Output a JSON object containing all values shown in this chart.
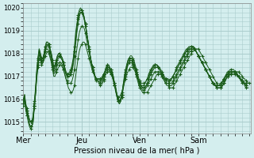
{
  "bg_color": "#d4eeee",
  "plot_bg_color": "#d4eeee",
  "grid_color": "#aacccc",
  "line_color": "#1a5c1a",
  "ylim": [
    1014.5,
    1020.2
  ],
  "yticks": [
    1015,
    1016,
    1017,
    1018,
    1019,
    1020
  ],
  "xlabel": "Pression niveau de la mer( hPa )",
  "day_labels": [
    "Mer",
    "Jeu",
    "Ven",
    "Sam"
  ],
  "day_positions": [
    0,
    48,
    96,
    144
  ],
  "series": [
    [
      1015.8,
      1016.1,
      1015.6,
      1015.5,
      1015.3,
      1015.1,
      1015.0,
      1015.0,
      1015.2,
      1015.8,
      1016.3,
      1017.1,
      1017.6,
      1018.0,
      1017.8,
      1017.6,
      1017.6,
      1017.7,
      1017.9,
      1018.0,
      1018.1,
      1018.0,
      1017.8,
      1017.6,
      1017.3,
      1017.0,
      1017.0,
      1017.2,
      1017.3,
      1017.4,
      1017.5,
      1017.5,
      1017.4,
      1017.3,
      1017.1,
      1016.9,
      1016.7,
      1016.5,
      1016.4,
      1016.3,
      1016.3,
      1016.4,
      1016.6,
      1017.0,
      1017.4,
      1017.8,
      1018.1,
      1018.3,
      1018.4,
      1018.5,
      1018.5,
      1018.4,
      1018.2,
      1018.0,
      1017.8,
      1017.6,
      1017.4,
      1017.2,
      1017.1,
      1017.0,
      1016.9,
      1016.8,
      1016.7,
      1016.6,
      1016.6,
      1016.7,
      1016.8,
      1017.0,
      1017.1,
      1017.2,
      1017.2,
      1017.2,
      1017.1,
      1017.0,
      1016.8,
      1016.6,
      1016.4,
      1016.2,
      1016.1,
      1016.1,
      1016.2,
      1016.3,
      1016.5,
      1016.7,
      1016.9,
      1017.1,
      1017.2,
      1017.3,
      1017.4,
      1017.4,
      1017.4,
      1017.3,
      1017.2,
      1017.0,
      1016.8,
      1016.6,
      1016.5,
      1016.4,
      1016.3,
      1016.3,
      1016.3,
      1016.3,
      1016.3,
      1016.4,
      1016.5,
      1016.6,
      1016.7,
      1016.8,
      1016.9,
      1017.0,
      1017.1,
      1017.1,
      1017.1,
      1017.1,
      1017.0,
      1016.9,
      1016.8,
      1016.7,
      1016.6,
      1016.6,
      1016.5,
      1016.5,
      1016.5,
      1016.5,
      1016.6,
      1016.7,
      1016.8,
      1016.9,
      1017.0,
      1017.1,
      1017.2,
      1017.3,
      1017.4,
      1017.5,
      1017.6,
      1017.7,
      1017.8,
      1017.9,
      1018.0,
      1018.1,
      1018.1,
      1018.2,
      1018.2,
      1018.2,
      1018.2,
      1018.1,
      1018.0,
      1017.9,
      1017.8,
      1017.7,
      1017.6,
      1017.5,
      1017.4,
      1017.3,
      1017.2,
      1017.1,
      1017.0,
      1016.9,
      1016.8,
      1016.7,
      1016.6,
      1016.6,
      1016.6,
      1016.6,
      1016.6,
      1016.7,
      1016.8,
      1016.9,
      1017.0,
      1017.0,
      1017.1,
      1017.1,
      1017.2,
      1017.2,
      1017.2,
      1017.2,
      1017.2,
      1017.2,
      1017.1,
      1017.1,
      1017.0,
      1016.9,
      1016.9,
      1016.8,
      1016.8,
      1016.7,
      1016.7,
      1016.7
    ],
    [
      1015.9,
      1016.2,
      1015.6,
      1015.4,
      1015.1,
      1014.9,
      1014.8,
      1014.8,
      1015.0,
      1015.6,
      1016.2,
      1017.0,
      1017.5,
      1018.0,
      1017.8,
      1017.6,
      1017.7,
      1017.9,
      1018.1,
      1018.2,
      1018.2,
      1018.1,
      1017.9,
      1017.7,
      1017.4,
      1017.1,
      1017.2,
      1017.3,
      1017.5,
      1017.6,
      1017.6,
      1017.6,
      1017.5,
      1017.3,
      1017.1,
      1016.9,
      1016.8,
      1016.7,
      1016.7,
      1016.7,
      1016.8,
      1017.0,
      1017.3,
      1017.8,
      1018.2,
      1018.6,
      1018.9,
      1019.1,
      1019.2,
      1019.2,
      1019.1,
      1018.9,
      1018.6,
      1018.4,
      1018.1,
      1017.8,
      1017.6,
      1017.4,
      1017.2,
      1017.0,
      1016.9,
      1016.8,
      1016.8,
      1016.7,
      1016.7,
      1016.8,
      1016.9,
      1017.1,
      1017.2,
      1017.3,
      1017.3,
      1017.2,
      1017.1,
      1017.0,
      1016.8,
      1016.6,
      1016.3,
      1016.1,
      1015.9,
      1015.9,
      1016.0,
      1016.2,
      1016.5,
      1016.8,
      1017.1,
      1017.3,
      1017.5,
      1017.6,
      1017.6,
      1017.6,
      1017.5,
      1017.4,
      1017.3,
      1017.1,
      1016.9,
      1016.7,
      1016.6,
      1016.5,
      1016.4,
      1016.4,
      1016.4,
      1016.5,
      1016.6,
      1016.7,
      1016.8,
      1016.9,
      1017.0,
      1017.1,
      1017.2,
      1017.2,
      1017.2,
      1017.2,
      1017.2,
      1017.1,
      1017.0,
      1016.9,
      1016.8,
      1016.7,
      1016.7,
      1016.7,
      1016.6,
      1016.6,
      1016.6,
      1016.7,
      1016.8,
      1016.9,
      1017.0,
      1017.1,
      1017.2,
      1017.3,
      1017.4,
      1017.5,
      1017.6,
      1017.7,
      1017.8,
      1017.9,
      1018.0,
      1018.1,
      1018.1,
      1018.2,
      1018.2,
      1018.2,
      1018.1,
      1018.0,
      1017.9,
      1017.8,
      1017.7,
      1017.6,
      1017.5,
      1017.4,
      1017.3,
      1017.2,
      1017.1,
      1017.0,
      1016.9,
      1016.8,
      1016.7,
      1016.6,
      1016.6,
      1016.5,
      1016.5,
      1016.5,
      1016.5,
      1016.5,
      1016.6,
      1016.7,
      1016.8,
      1016.9,
      1017.0,
      1017.0,
      1017.1,
      1017.1,
      1017.1,
      1017.1,
      1017.1,
      1017.1,
      1017.0,
      1017.0,
      1016.9,
      1016.8,
      1016.7,
      1016.7,
      1016.6,
      1016.5,
      1016.5,
      1016.5
    ],
    [
      1016.0,
      1016.1,
      1015.7,
      1015.5,
      1015.3,
      1015.1,
      1015.0,
      1015.0,
      1015.2,
      1015.7,
      1016.2,
      1016.9,
      1017.4,
      1017.8,
      1017.7,
      1017.5,
      1017.6,
      1017.8,
      1018.1,
      1018.3,
      1018.4,
      1018.3,
      1018.1,
      1017.8,
      1017.5,
      1017.2,
      1017.3,
      1017.5,
      1017.7,
      1017.8,
      1017.9,
      1017.8,
      1017.7,
      1017.5,
      1017.3,
      1017.1,
      1017.0,
      1017.0,
      1017.0,
      1017.1,
      1017.2,
      1017.5,
      1017.9,
      1018.4,
      1018.9,
      1019.3,
      1019.6,
      1019.8,
      1019.8,
      1019.7,
      1019.5,
      1019.3,
      1018.9,
      1018.6,
      1018.2,
      1017.9,
      1017.6,
      1017.4,
      1017.2,
      1017.0,
      1016.9,
      1016.9,
      1016.9,
      1016.9,
      1016.9,
      1016.9,
      1017.0,
      1017.2,
      1017.3,
      1017.4,
      1017.4,
      1017.3,
      1017.2,
      1017.1,
      1016.9,
      1016.6,
      1016.4,
      1016.1,
      1015.9,
      1015.8,
      1015.9,
      1016.1,
      1016.4,
      1016.7,
      1017.0,
      1017.3,
      1017.5,
      1017.6,
      1017.7,
      1017.7,
      1017.6,
      1017.5,
      1017.3,
      1017.1,
      1016.9,
      1016.8,
      1016.6,
      1016.6,
      1016.5,
      1016.5,
      1016.5,
      1016.6,
      1016.7,
      1016.8,
      1017.0,
      1017.1,
      1017.2,
      1017.3,
      1017.4,
      1017.4,
      1017.4,
      1017.4,
      1017.3,
      1017.2,
      1017.1,
      1017.0,
      1016.9,
      1016.8,
      1016.8,
      1016.8,
      1016.7,
      1016.7,
      1016.7,
      1016.8,
      1016.9,
      1017.0,
      1017.1,
      1017.2,
      1017.3,
      1017.4,
      1017.5,
      1017.6,
      1017.7,
      1017.8,
      1017.9,
      1018.0,
      1018.1,
      1018.2,
      1018.2,
      1018.3,
      1018.3,
      1018.2,
      1018.1,
      1018.0,
      1017.9,
      1017.8,
      1017.7,
      1017.6,
      1017.5,
      1017.4,
      1017.3,
      1017.2,
      1017.1,
      1017.0,
      1016.9,
      1016.8,
      1016.7,
      1016.6,
      1016.6,
      1016.5,
      1016.5,
      1016.5,
      1016.5,
      1016.6,
      1016.7,
      1016.8,
      1016.9,
      1017.0,
      1017.1,
      1017.1,
      1017.2,
      1017.2,
      1017.2,
      1017.2,
      1017.2,
      1017.1,
      1017.1,
      1017.0,
      1016.9,
      1016.9,
      1016.8,
      1016.7,
      1016.7,
      1016.6,
      1016.6
    ],
    [
      1016.0,
      1016.2,
      1015.8,
      1015.6,
      1015.3,
      1015.1,
      1015.0,
      1015.0,
      1015.3,
      1015.9,
      1016.5,
      1017.3,
      1017.8,
      1018.2,
      1018.0,
      1017.8,
      1017.8,
      1018.0,
      1018.3,
      1018.5,
      1018.5,
      1018.4,
      1018.2,
      1018.0,
      1017.7,
      1017.4,
      1017.5,
      1017.7,
      1017.9,
      1018.0,
      1018.0,
      1017.9,
      1017.8,
      1017.6,
      1017.4,
      1017.2,
      1017.1,
      1017.1,
      1017.1,
      1017.2,
      1017.4,
      1017.7,
      1018.1,
      1018.7,
      1019.2,
      1019.6,
      1019.8,
      1019.9,
      1019.9,
      1019.8,
      1019.6,
      1019.3,
      1019.0,
      1018.6,
      1018.3,
      1017.9,
      1017.6,
      1017.4,
      1017.2,
      1017.0,
      1016.9,
      1016.9,
      1016.9,
      1016.9,
      1016.9,
      1017.0,
      1017.1,
      1017.2,
      1017.4,
      1017.5,
      1017.5,
      1017.4,
      1017.3,
      1017.2,
      1017.0,
      1016.7,
      1016.5,
      1016.2,
      1016.0,
      1015.9,
      1016.0,
      1016.2,
      1016.6,
      1016.9,
      1017.2,
      1017.5,
      1017.7,
      1017.8,
      1017.8,
      1017.8,
      1017.7,
      1017.6,
      1017.4,
      1017.2,
      1017.0,
      1016.8,
      1016.7,
      1016.6,
      1016.6,
      1016.6,
      1016.7,
      1016.8,
      1016.9,
      1017.0,
      1017.2,
      1017.3,
      1017.4,
      1017.4,
      1017.5,
      1017.5,
      1017.5,
      1017.4,
      1017.3,
      1017.2,
      1017.1,
      1017.0,
      1016.9,
      1016.9,
      1016.8,
      1016.8,
      1016.8,
      1016.8,
      1016.9,
      1017.0,
      1017.1,
      1017.2,
      1017.3,
      1017.4,
      1017.5,
      1017.6,
      1017.7,
      1017.8,
      1017.9,
      1018.0,
      1018.1,
      1018.2,
      1018.2,
      1018.3,
      1018.3,
      1018.3,
      1018.3,
      1018.2,
      1018.1,
      1018.0,
      1017.9,
      1017.8,
      1017.7,
      1017.6,
      1017.5,
      1017.4,
      1017.3,
      1017.2,
      1017.1,
      1017.0,
      1016.9,
      1016.8,
      1016.7,
      1016.7,
      1016.6,
      1016.6,
      1016.6,
      1016.6,
      1016.6,
      1016.7,
      1016.8,
      1016.9,
      1017.0,
      1017.1,
      1017.1,
      1017.2,
      1017.2,
      1017.2,
      1017.2,
      1017.2,
      1017.2,
      1017.1,
      1017.1,
      1017.0,
      1016.9,
      1016.9,
      1016.8,
      1016.8,
      1016.7,
      1016.7,
      1016.7
    ],
    [
      1015.7,
      1016.0,
      1015.5,
      1015.3,
      1015.0,
      1014.8,
      1014.7,
      1014.8,
      1015.0,
      1015.7,
      1016.3,
      1017.1,
      1017.7,
      1018.1,
      1017.9,
      1017.7,
      1017.7,
      1017.9,
      1018.2,
      1018.4,
      1018.4,
      1018.3,
      1018.1,
      1017.9,
      1017.6,
      1017.3,
      1017.4,
      1017.6,
      1017.8,
      1017.9,
      1017.9,
      1017.8,
      1017.7,
      1017.5,
      1017.3,
      1017.1,
      1017.0,
      1017.0,
      1017.0,
      1017.1,
      1017.3,
      1017.6,
      1018.1,
      1018.6,
      1019.1,
      1019.5,
      1019.7,
      1019.8,
      1019.8,
      1019.7,
      1019.5,
      1019.2,
      1018.9,
      1018.5,
      1018.2,
      1017.8,
      1017.5,
      1017.3,
      1017.1,
      1016.9,
      1016.8,
      1016.8,
      1016.8,
      1016.8,
      1016.8,
      1016.9,
      1017.0,
      1017.2,
      1017.3,
      1017.4,
      1017.4,
      1017.3,
      1017.2,
      1017.1,
      1016.9,
      1016.6,
      1016.4,
      1016.1,
      1015.9,
      1015.8,
      1015.9,
      1016.1,
      1016.5,
      1016.8,
      1017.1,
      1017.4,
      1017.6,
      1017.7,
      1017.7,
      1017.7,
      1017.6,
      1017.5,
      1017.3,
      1017.1,
      1016.9,
      1016.8,
      1016.6,
      1016.6,
      1016.5,
      1016.5,
      1016.5,
      1016.6,
      1016.7,
      1016.9,
      1017.1,
      1017.2,
      1017.3,
      1017.4,
      1017.5,
      1017.5,
      1017.5,
      1017.4,
      1017.3,
      1017.2,
      1017.1,
      1017.0,
      1016.9,
      1016.9,
      1016.8,
      1016.8,
      1016.8,
      1016.8,
      1016.9,
      1017.0,
      1017.1,
      1017.2,
      1017.3,
      1017.4,
      1017.5,
      1017.6,
      1017.7,
      1017.8,
      1017.9,
      1018.0,
      1018.1,
      1018.1,
      1018.2,
      1018.2,
      1018.2,
      1018.3,
      1018.2,
      1018.2,
      1018.1,
      1018.0,
      1017.9,
      1017.8,
      1017.7,
      1017.6,
      1017.5,
      1017.4,
      1017.3,
      1017.2,
      1017.1,
      1017.0,
      1016.9,
      1016.8,
      1016.7,
      1016.7,
      1016.6,
      1016.6,
      1016.6,
      1016.6,
      1016.6,
      1016.7,
      1016.8,
      1016.9,
      1017.0,
      1017.0,
      1017.1,
      1017.1,
      1017.2,
      1017.2,
      1017.2,
      1017.2,
      1017.1,
      1017.1,
      1017.0,
      1017.0,
      1016.9,
      1016.8,
      1016.8,
      1016.7,
      1016.7,
      1016.6,
      1016.6
    ],
    [
      1015.8,
      1016.1,
      1015.6,
      1015.3,
      1015.1,
      1014.9,
      1014.8,
      1014.8,
      1015.1,
      1015.7,
      1016.4,
      1017.2,
      1017.8,
      1018.2,
      1018.0,
      1017.8,
      1017.8,
      1018.0,
      1018.3,
      1018.5,
      1018.5,
      1018.4,
      1018.2,
      1018.0,
      1017.7,
      1017.4,
      1017.5,
      1017.7,
      1017.9,
      1018.0,
      1018.0,
      1017.9,
      1017.8,
      1017.6,
      1017.4,
      1017.2,
      1017.1,
      1017.1,
      1017.2,
      1017.3,
      1017.5,
      1017.8,
      1018.3,
      1018.9,
      1019.3,
      1019.7,
      1019.9,
      1020.0,
      1019.9,
      1019.8,
      1019.6,
      1019.3,
      1018.9,
      1018.6,
      1018.2,
      1017.9,
      1017.6,
      1017.4,
      1017.2,
      1017.0,
      1016.9,
      1016.9,
      1016.9,
      1016.9,
      1016.9,
      1017.0,
      1017.1,
      1017.2,
      1017.4,
      1017.5,
      1017.5,
      1017.4,
      1017.3,
      1017.2,
      1017.0,
      1016.7,
      1016.5,
      1016.2,
      1016.0,
      1015.9,
      1016.0,
      1016.2,
      1016.6,
      1017.0,
      1017.3,
      1017.5,
      1017.7,
      1017.8,
      1017.9,
      1017.9,
      1017.8,
      1017.7,
      1017.5,
      1017.3,
      1017.1,
      1016.9,
      1016.8,
      1016.7,
      1016.7,
      1016.7,
      1016.7,
      1016.8,
      1016.9,
      1017.1,
      1017.2,
      1017.3,
      1017.4,
      1017.5,
      1017.5,
      1017.5,
      1017.5,
      1017.4,
      1017.4,
      1017.3,
      1017.2,
      1017.1,
      1017.0,
      1016.9,
      1016.9,
      1016.9,
      1016.8,
      1016.9,
      1016.9,
      1017.0,
      1017.1,
      1017.2,
      1017.4,
      1017.5,
      1017.6,
      1017.7,
      1017.8,
      1017.9,
      1018.0,
      1018.1,
      1018.2,
      1018.2,
      1018.3,
      1018.3,
      1018.3,
      1018.3,
      1018.3,
      1018.2,
      1018.1,
      1018.0,
      1017.9,
      1017.8,
      1017.7,
      1017.6,
      1017.5,
      1017.4,
      1017.3,
      1017.2,
      1017.1,
      1017.0,
      1016.9,
      1016.8,
      1016.7,
      1016.7,
      1016.6,
      1016.6,
      1016.6,
      1016.6,
      1016.7,
      1016.7,
      1016.8,
      1016.9,
      1017.0,
      1017.1,
      1017.2,
      1017.2,
      1017.3,
      1017.3,
      1017.3,
      1017.3,
      1017.2,
      1017.2,
      1017.1,
      1017.0,
      1016.9,
      1016.9,
      1016.8,
      1016.7,
      1016.7,
      1016.7,
      1016.6
    ]
  ]
}
